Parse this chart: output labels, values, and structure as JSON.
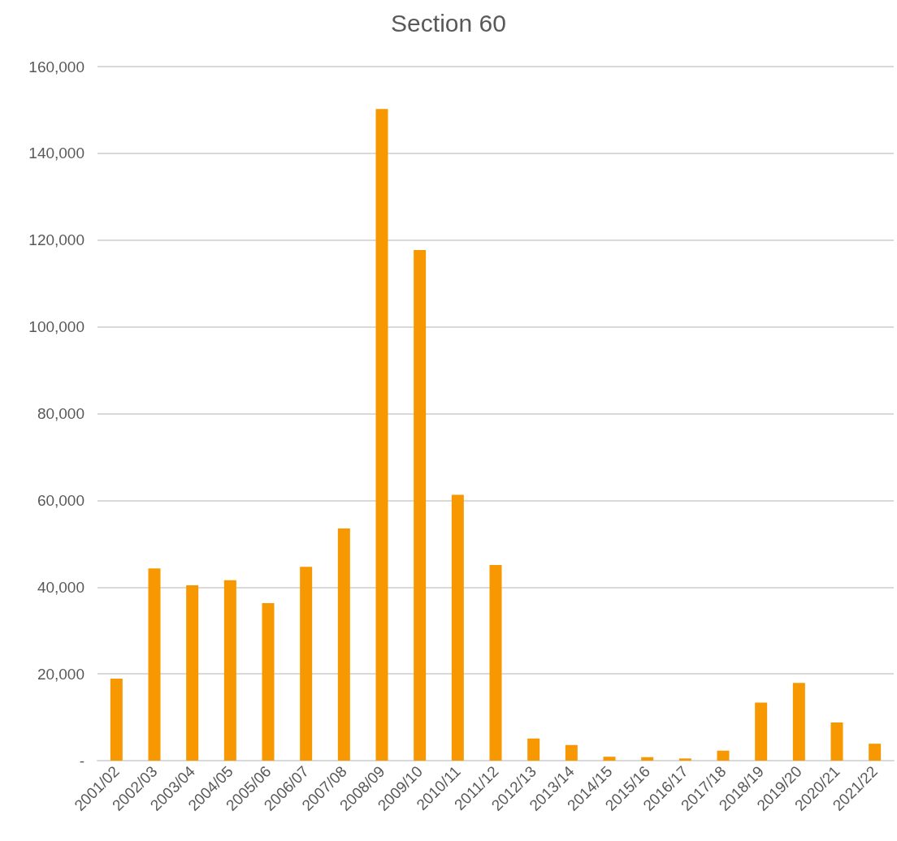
{
  "chart_data": {
    "type": "bar",
    "title": "Section 60",
    "categories": [
      "2001/02",
      "2002/03",
      "2003/04",
      "2004/05",
      "2005/06",
      "2006/07",
      "2007/08",
      "2008/09",
      "2009/10",
      "2010/11",
      "2011/12",
      "2012/13",
      "2013/14",
      "2014/15",
      "2015/16",
      "2016/17",
      "2017/18",
      "2018/19",
      "2019/20",
      "2020/21",
      "2021/22"
    ],
    "values": [
      18900,
      44300,
      40400,
      41600,
      36300,
      44700,
      53500,
      150200,
      117700,
      61300,
      45100,
      5100,
      3600,
      900,
      800,
      500,
      2300,
      13400,
      17900,
      8800,
      3900
    ],
    "color": "#f79800",
    "ylim": [
      0,
      160000
    ],
    "yticks": [
      {
        "value": 0,
        "label": "-"
      },
      {
        "value": 20000,
        "label": "20,000"
      },
      {
        "value": 40000,
        "label": "40,000"
      },
      {
        "value": 60000,
        "label": "60,000"
      },
      {
        "value": 80000,
        "label": "80,000"
      },
      {
        "value": 100000,
        "label": "100,000"
      },
      {
        "value": 120000,
        "label": "120,000"
      },
      {
        "value": 140000,
        "label": "140,000"
      },
      {
        "value": 160000,
        "label": "160,000"
      }
    ],
    "grid": "y"
  }
}
